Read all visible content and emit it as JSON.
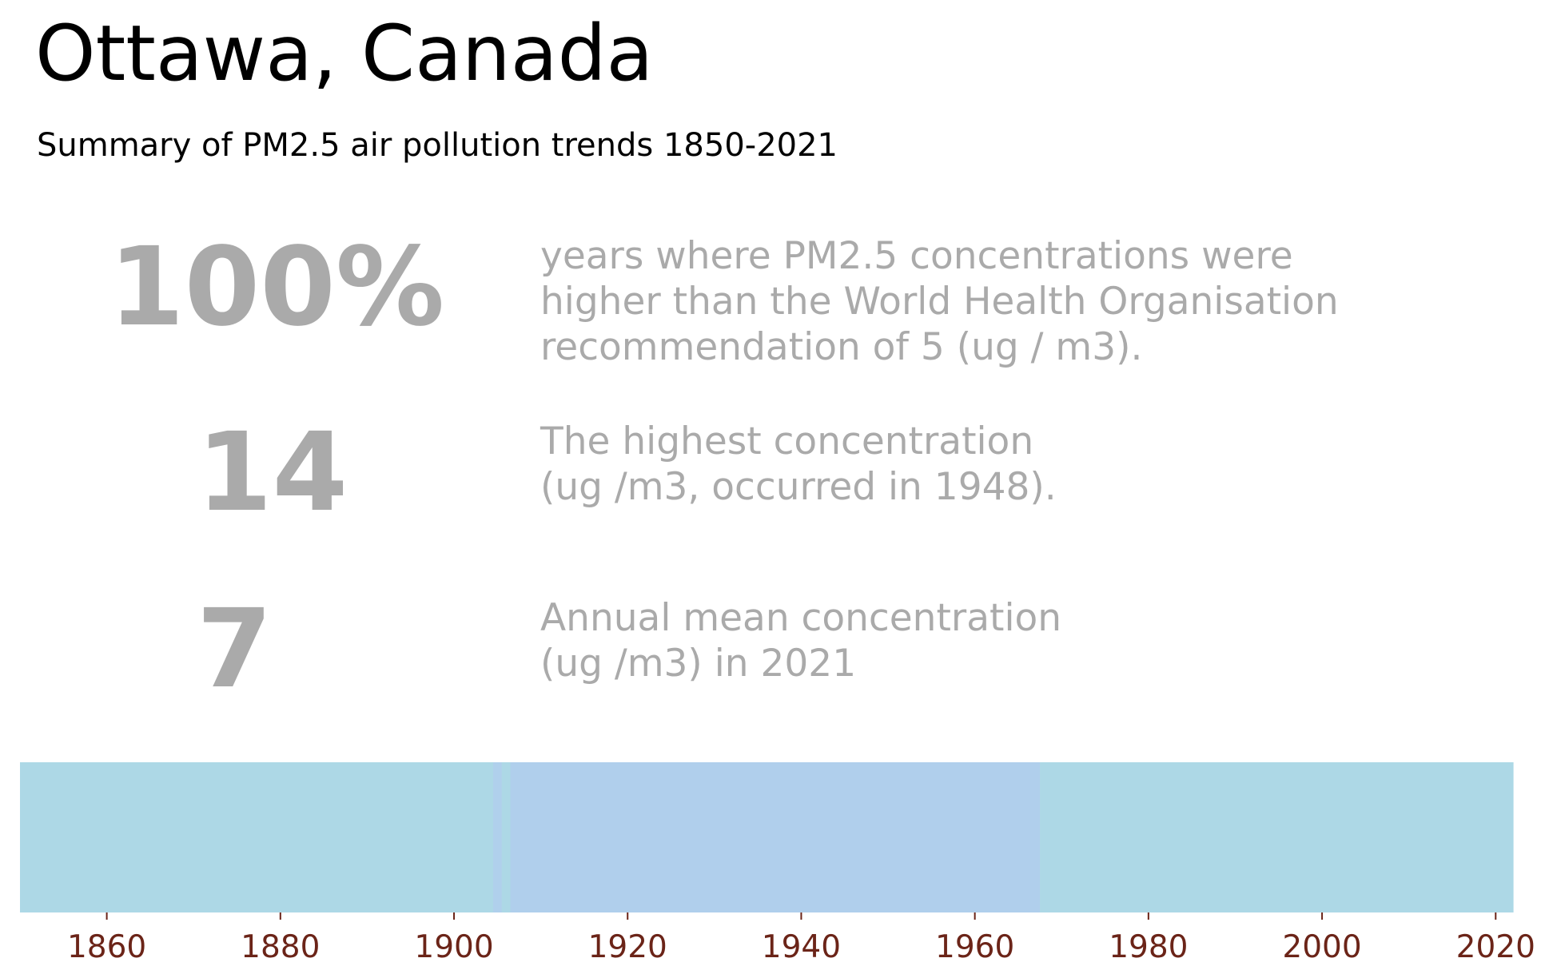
{
  "page": {
    "title": "Ottawa, Canada",
    "subtitle": "Summary of PM2.5 air pollution trends 1850-2021"
  },
  "stats": [
    {
      "value": "100%",
      "description_lines": [
        "years where PM2.5 concentrations were",
        "higher than the World Health Organisation",
        "recommendation of 5 (ug / m3)."
      ]
    },
    {
      "value": "14",
      "description_lines": [
        "The highest concentration",
        "(ug /m3, occurred in 1948)."
      ]
    },
    {
      "value": "7",
      "description_lines": [
        "Annual mean concentration",
        "(ug /m3) in 2021"
      ]
    }
  ],
  "colors": {
    "stat_text": "#aaaaaa",
    "tick_label": "#6b2418",
    "band_light": "#add8e6",
    "band_blue": "#b0cfec"
  },
  "chart_data": {
    "type": "heatmap",
    "title": "",
    "xlabel": "",
    "ylabel": "",
    "xlim": [
      1850,
      2022
    ],
    "x_ticks": [
      1860,
      1880,
      1900,
      1920,
      1940,
      1960,
      1980,
      2000,
      2020
    ],
    "grid": false,
    "bands": [
      {
        "start": 1850,
        "end": 1904.5,
        "color": "#add8e6"
      },
      {
        "start": 1904.5,
        "end": 1905.5,
        "color": "#b0d0ec"
      },
      {
        "start": 1905.5,
        "end": 1906.5,
        "color": "#add8e6"
      },
      {
        "start": 1906.5,
        "end": 1967.5,
        "color": "#b0cfec"
      },
      {
        "start": 1967.5,
        "end": 2022,
        "color": "#add8e6"
      }
    ]
  }
}
